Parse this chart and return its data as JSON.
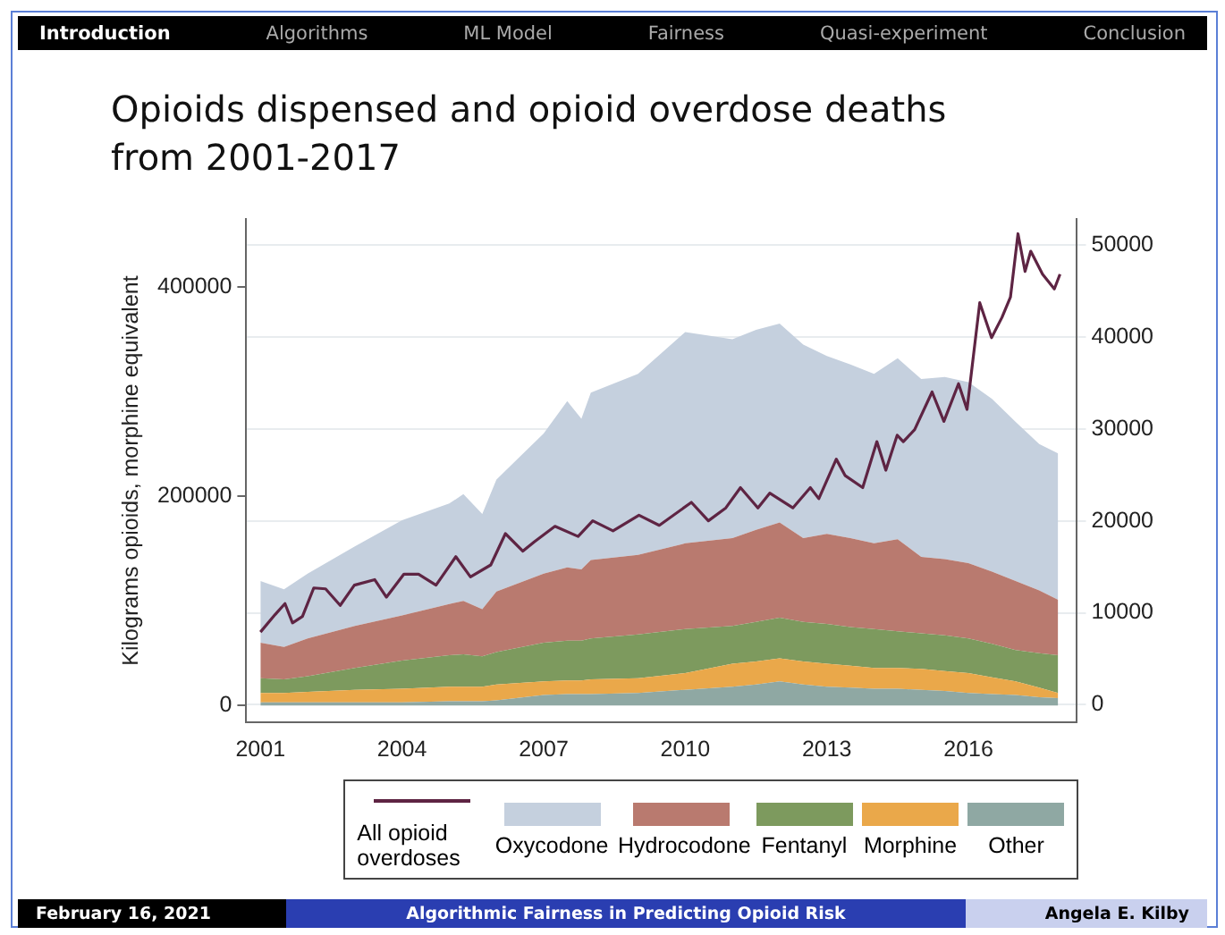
{
  "chart_data": {
    "type": "area",
    "title": "Opioids dispensed and opioid overdose deaths from 2001-2017",
    "ylabel": "Kilograms opioids, morphine equivalent",
    "annotations": [
      "Introduction",
      "Algorithms",
      "ML Model",
      "Fairness",
      "Quasi-experiment",
      "Conclusion",
      "February 16, 2021",
      "Algorithmic Fairness in Predicting Opioid Risk",
      "Angela E. Kilby"
    ],
    "x": [
      2001,
      2001.5,
      2002,
      2003,
      2004,
      2005,
      2005.3,
      2005.7,
      2006,
      2007,
      2007.5,
      2007.8,
      2008,
      2009,
      2010,
      2011,
      2011.5,
      2012,
      2012.5,
      2013,
      2013.5,
      2014,
      2014.5,
      2015,
      2015.5,
      2016,
      2016.5,
      2017,
      2017.5,
      2017.9
    ],
    "stacked": true,
    "series": [
      {
        "name": "All opioid overdoses",
        "type": "line",
        "axis": "y2",
        "color": "#5e2443",
        "x": [
          2001.0,
          2001.31,
          2001.52,
          2001.68,
          2001.89,
          2002.13,
          2002.38,
          2002.69,
          2002.99,
          2003.42,
          2003.67,
          2004.04,
          2004.35,
          2004.72,
          2005.14,
          2005.45,
          2005.88,
          2006.19,
          2006.56,
          2006.8,
          2007.24,
          2007.73,
          2008.04,
          2008.47,
          2009.02,
          2009.45,
          2010.13,
          2010.49,
          2010.86,
          2011.17,
          2011.54,
          2011.79,
          2012.28,
          2012.65,
          2012.83,
          2013.2,
          2013.39,
          2013.76,
          2014.06,
          2014.25,
          2014.49,
          2014.62,
          2014.86,
          2015.23,
          2015.48,
          2015.79,
          2015.97,
          2016.24,
          2016.49,
          2016.71,
          2016.89,
          2017.05,
          2017.2,
          2017.32,
          2017.57,
          2017.82,
          2017.94
        ],
        "values": [
          7900,
          9800,
          11000,
          8900,
          9600,
          12700,
          12600,
          10800,
          13000,
          13600,
          11700,
          14200,
          14200,
          13000,
          16100,
          13900,
          15200,
          18600,
          16700,
          17700,
          19400,
          18300,
          20000,
          18900,
          20600,
          19500,
          22000,
          20000,
          21400,
          23600,
          21400,
          23000,
          21400,
          23600,
          22400,
          26700,
          24900,
          23600,
          28600,
          25500,
          29300,
          28600,
          29900,
          34000,
          30800,
          34900,
          32100,
          43700,
          39900,
          42100,
          44300,
          51200,
          47100,
          49300,
          46800,
          45200,
          46800
        ]
      },
      {
        "name": "Other",
        "color": "#8fa8a3",
        "values": [
          3000,
          3000,
          3000,
          3000,
          3000,
          4000,
          4000,
          4000,
          5000,
          10000,
          11000,
          11000,
          11000,
          12000,
          15000,
          18000,
          20000,
          23000,
          20000,
          18000,
          17000,
          16000,
          16000,
          15000,
          14000,
          12000,
          11000,
          10000,
          8000,
          7000
        ]
      },
      {
        "name": "Morphine",
        "color": "#eaa84a",
        "values": [
          9000,
          9000,
          10000,
          12000,
          13000,
          14000,
          14000,
          14000,
          15000,
          13000,
          13000,
          13000,
          14000,
          14000,
          16000,
          22000,
          22000,
          22000,
          22000,
          22000,
          21000,
          20000,
          20000,
          20000,
          19000,
          19000,
          16000,
          13000,
          9000,
          5000
        ]
      },
      {
        "name": "Fentanyl",
        "color": "#7d9a5e",
        "values": [
          14000,
          13000,
          15000,
          21000,
          27000,
          30000,
          31000,
          29000,
          31000,
          37000,
          38000,
          38000,
          39000,
          42000,
          42000,
          36000,
          38000,
          39000,
          38000,
          38000,
          37000,
          37000,
          35000,
          34000,
          34000,
          33000,
          32000,
          30000,
          33000,
          36000
        ]
      },
      {
        "name": "Hydrocodone",
        "color": "#b97a6f",
        "values": [
          34000,
          31000,
          36000,
          40000,
          43000,
          49000,
          51000,
          45000,
          58000,
          66000,
          70000,
          68000,
          75000,
          76000,
          82000,
          84000,
          88000,
          91000,
          80000,
          86000,
          85000,
          82000,
          88000,
          73000,
          73000,
          72000,
          69000,
          66000,
          60000,
          53000
        ]
      },
      {
        "name": "Oxycodone",
        "color": "#c5d0de",
        "values": [
          59000,
          55000,
          62000,
          76000,
          91000,
          96000,
          102000,
          91000,
          107000,
          134000,
          159000,
          144000,
          160000,
          173000,
          202000,
          190000,
          191000,
          190000,
          185000,
          170000,
          166000,
          162000,
          173000,
          170000,
          174000,
          173000,
          165000,
          152000,
          140000,
          140000
        ]
      }
    ],
    "xlim": [
      2000.7,
      2018.3
    ],
    "xticks": [
      2001,
      2004,
      2007,
      2010,
      2013,
      2016
    ],
    "ylim": [
      -16000,
      465000
    ],
    "yticks": [
      0,
      200000,
      400000
    ],
    "y2lim": [
      -1900,
      52800
    ],
    "y2ticks": [
      0,
      10000,
      20000,
      30000,
      40000,
      50000
    ],
    "grid": "y2",
    "legend": "bottom"
  }
}
